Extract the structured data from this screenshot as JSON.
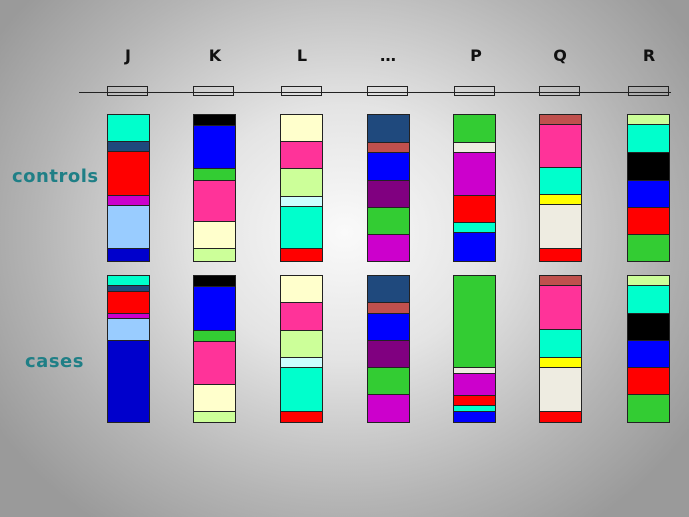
{
  "columns": [
    "J",
    "K",
    "L",
    "…",
    "P",
    "Q",
    "R"
  ],
  "row_labels": {
    "controls": "controls",
    "cases": "cases"
  },
  "colors": {
    "teal": "#00FFCC",
    "navy": "#1F497D",
    "red": "#FF0000",
    "magenta": "#CC00CC",
    "lightblue": "#99CCFF",
    "blue": "#0000CC",
    "black": "#000000",
    "brightblue": "#0000FF",
    "green": "#33CC33",
    "pink": "#FF3399",
    "cream": "#FFFFCC",
    "lime": "#CCFF99",
    "cyanlight": "#CCFFFF",
    "rose": "#C0504D",
    "purple": "#800080",
    "offwhite": "#EEECE1",
    "yellow": "#FFFF00"
  },
  "bars": {
    "controls": [
      [
        [
          "teal",
          27
        ],
        [
          "navy",
          10
        ],
        [
          "red",
          44
        ],
        [
          "magenta",
          10
        ],
        [
          "lightblue",
          43
        ],
        [
          "blue",
          12
        ]
      ],
      [
        [
          "black",
          11
        ],
        [
          "brightblue",
          43
        ],
        [
          "green",
          12
        ],
        [
          "pink",
          41
        ],
        [
          "cream",
          27
        ],
        [
          "lime",
          12
        ]
      ],
      [
        [
          "cream",
          27
        ],
        [
          "pink",
          27
        ],
        [
          "lime",
          28
        ],
        [
          "cyanlight",
          10
        ],
        [
          "teal",
          42
        ],
        [
          "red",
          12
        ]
      ],
      [
        [
          "navy",
          28
        ],
        [
          "rose",
          10
        ],
        [
          "brightblue",
          28
        ],
        [
          "purple",
          27
        ],
        [
          "green",
          27
        ],
        [
          "magenta",
          26
        ]
      ],
      [
        [
          "green",
          28
        ],
        [
          "offwhite",
          10
        ],
        [
          "magenta",
          43
        ],
        [
          "red",
          27
        ],
        [
          "teal",
          10
        ],
        [
          "brightblue",
          28
        ]
      ],
      [
        [
          "rose",
          10
        ],
        [
          "pink",
          43
        ],
        [
          "teal",
          27
        ],
        [
          "yellow",
          10
        ],
        [
          "offwhite",
          44
        ],
        [
          "red",
          12
        ]
      ],
      [
        [
          "lime",
          10
        ],
        [
          "teal",
          28
        ],
        [
          "black",
          28
        ],
        [
          "brightblue",
          27
        ],
        [
          "red",
          27
        ],
        [
          "green",
          26
        ]
      ]
    ],
    "cases": [
      [
        [
          "teal",
          10
        ],
        [
          "navy",
          6
        ],
        [
          "red",
          22
        ],
        [
          "magenta",
          5
        ],
        [
          "lightblue",
          22
        ],
        [
          "blue",
          81
        ]
      ],
      [
        [
          "black",
          11
        ],
        [
          "brightblue",
          44
        ],
        [
          "green",
          11
        ],
        [
          "pink",
          43
        ],
        [
          "cream",
          27
        ],
        [
          "lime",
          10
        ]
      ],
      [
        [
          "cream",
          27
        ],
        [
          "pink",
          28
        ],
        [
          "lime",
          27
        ],
        [
          "cyanlight",
          10
        ],
        [
          "teal",
          44
        ],
        [
          "red",
          10
        ]
      ],
      [
        [
          "navy",
          27
        ],
        [
          "rose",
          11
        ],
        [
          "brightblue",
          27
        ],
        [
          "purple",
          27
        ],
        [
          "green",
          27
        ],
        [
          "magenta",
          27
        ]
      ],
      [
        [
          "green",
          92
        ],
        [
          "offwhite",
          6
        ],
        [
          "magenta",
          22
        ],
        [
          "red",
          10
        ],
        [
          "teal",
          6
        ],
        [
          "brightblue",
          10
        ]
      ],
      [
        [
          "rose",
          10
        ],
        [
          "pink",
          44
        ],
        [
          "teal",
          28
        ],
        [
          "yellow",
          10
        ],
        [
          "offwhite",
          44
        ],
        [
          "red",
          10
        ]
      ],
      [
        [
          "lime",
          10
        ],
        [
          "teal",
          28
        ],
        [
          "black",
          27
        ],
        [
          "brightblue",
          27
        ],
        [
          "red",
          27
        ],
        [
          "green",
          27
        ]
      ]
    ]
  }
}
